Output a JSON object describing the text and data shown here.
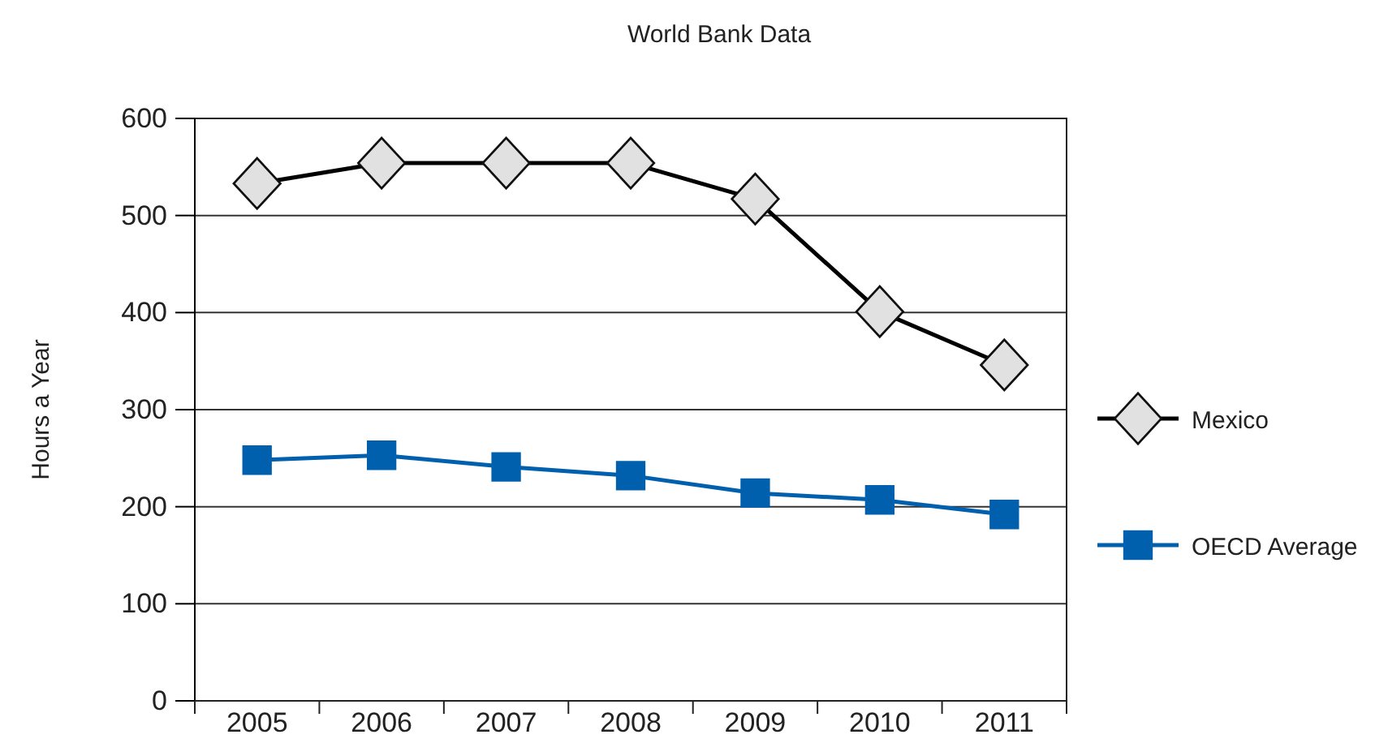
{
  "chart_data": {
    "type": "line",
    "title": "World Bank Data",
    "ylabel": "Hours a Year",
    "categories": [
      "2005",
      "2006",
      "2007",
      "2008",
      "2009",
      "2010",
      "2011"
    ],
    "series": [
      {
        "name": "Mexico",
        "color": "#000000",
        "marker": "diamond",
        "values": [
          533,
          554,
          554,
          554,
          517,
          401,
          346
        ]
      },
      {
        "name": "OECD Average",
        "color": "#0060ae",
        "marker": "square",
        "values": [
          248,
          253,
          241,
          232,
          214,
          207,
          192
        ]
      }
    ],
    "ylim": [
      0,
      600
    ],
    "yticks": [
      0,
      100,
      200,
      300,
      400,
      500,
      600
    ],
    "grid": "y",
    "legend": "right"
  }
}
